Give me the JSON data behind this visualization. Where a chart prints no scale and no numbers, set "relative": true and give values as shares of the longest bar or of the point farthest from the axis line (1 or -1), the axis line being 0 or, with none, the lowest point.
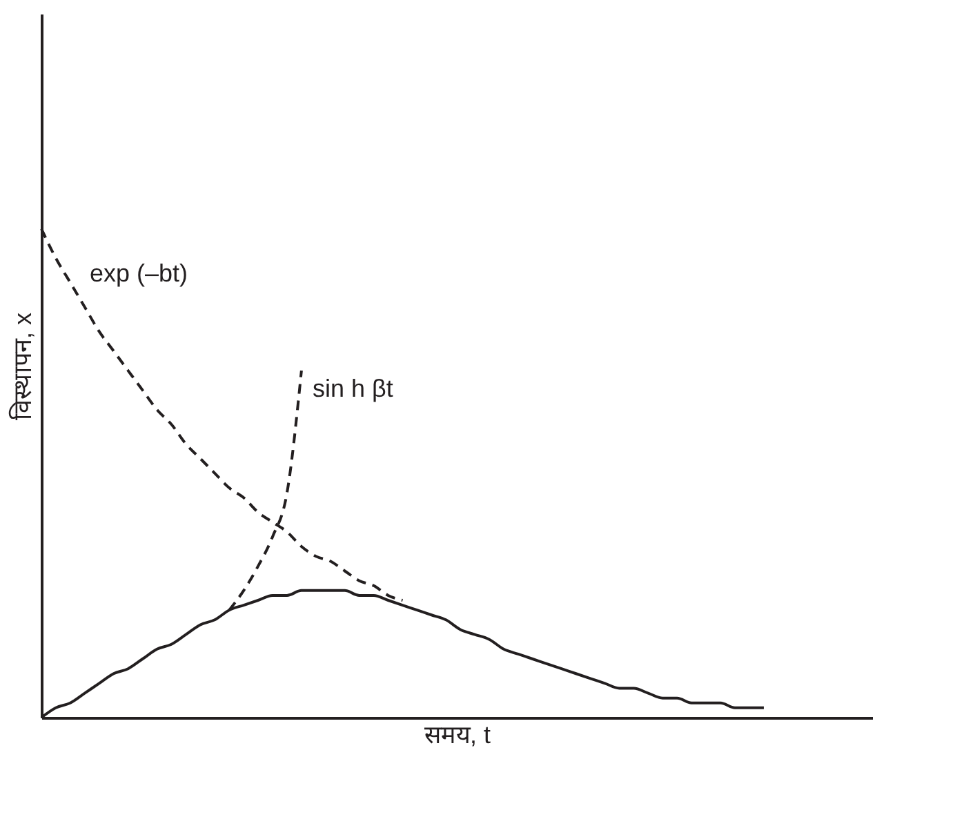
{
  "chart_data": {
    "type": "line",
    "relative": true,
    "xlabel": "समय, t",
    "ylabel": "विस्थापन, x",
    "categories": [
      null,
      null,
      null,
      null,
      null,
      null,
      null,
      null,
      null,
      null,
      null,
      null,
      null,
      null,
      null,
      null,
      null,
      null,
      null,
      null,
      null,
      null,
      null,
      null,
      null,
      null,
      null,
      null,
      null,
      null,
      null,
      null,
      null,
      null,
      null,
      null,
      null,
      null,
      null,
      null,
      null,
      null,
      null,
      null,
      null,
      null,
      null,
      null,
      null,
      null,
      null
    ],
    "series": [
      {
        "name": "exp (–bt)",
        "color": "#231f20",
        "line_style": "dashed",
        "values": [
          1,
          0.94,
          0.89,
          0.84,
          0.79,
          0.75,
          0.71,
          0.67,
          0.63,
          0.6,
          0.56,
          0.53,
          0.5,
          0.47,
          0.45,
          0.42,
          0.4,
          0.38,
          0.35,
          0.33,
          0.32,
          0.3,
          0.28,
          0.27,
          0.25,
          0.24,
          null,
          null,
          null,
          null,
          null,
          null,
          null,
          null,
          null,
          null,
          null,
          null,
          null,
          null,
          null,
          null,
          null,
          null,
          null,
          null,
          null,
          null,
          null,
          null,
          null
        ]
      },
      {
        "name": "sin h βt",
        "color": "#231f20",
        "line_style": "dashed",
        "values": [
          null,
          null,
          null,
          null,
          null,
          null,
          null,
          null,
          null,
          null,
          null,
          null,
          null,
          0.22,
          0.26,
          0.31,
          0.37,
          0.46,
          0.71,
          null,
          null,
          null,
          null,
          null,
          null,
          null,
          null,
          null,
          null,
          null,
          null,
          null,
          null,
          null,
          null,
          null,
          null,
          null,
          null,
          null,
          null,
          null,
          null,
          null,
          null,
          null,
          null,
          null,
          null,
          null,
          null
        ]
      },
      {
        "color": "#231f20",
        "line_style": "solid",
        "values": [
          0,
          0.02,
          0.03,
          0.05,
          0.07,
          0.09,
          0.1,
          0.12,
          0.14,
          0.15,
          0.17,
          0.19,
          0.2,
          0.22,
          0.23,
          0.24,
          0.25,
          0.25,
          0.26,
          0.26,
          0.26,
          0.26,
          0.25,
          0.25,
          0.24,
          0.23,
          0.22,
          0.21,
          0.2,
          0.18,
          0.17,
          0.16,
          0.14,
          0.13,
          0.12,
          0.11,
          0.1,
          0.09,
          0.08,
          0.07,
          0.06,
          0.06,
          0.05,
          0.04,
          0.04,
          0.03,
          0.03,
          0.03,
          0.02,
          0.02,
          0.02
        ]
      }
    ]
  }
}
